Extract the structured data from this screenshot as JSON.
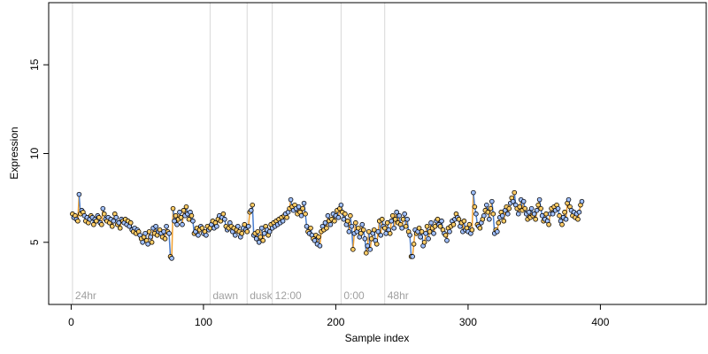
{
  "chart_data": {
    "type": "scatter",
    "title": "",
    "xlabel": "Sample index",
    "ylabel": "Expression",
    "xlim": [
      -17,
      480
    ],
    "ylim": [
      1.5,
      18.5
    ],
    "x_ticks": [
      0,
      100,
      200,
      300,
      400
    ],
    "y_ticks": [
      5,
      10,
      15
    ],
    "grid": false,
    "legend": "none",
    "colors": {
      "point_fill_a": "#ffcc66",
      "point_fill_b": "#a0c0ff",
      "point_stroke": "#000000",
      "connector_a": "#f0a030",
      "connector_b": "#4a7fd0",
      "phase_line": "#d8d8d8",
      "phase_label": "#a0a0a0"
    },
    "phase_markers": [
      {
        "label": "24hr",
        "x": 1
      },
      {
        "label": "dawn",
        "x": 105
      },
      {
        "label": "dusk",
        "x": 133
      },
      {
        "label": "12:00",
        "x": 152
      },
      {
        "label": "0:00",
        "x": 204
      },
      {
        "label": "48hr",
        "x": 237
      }
    ],
    "series": [
      {
        "x_start": 1,
        "values": [
          6.6,
          6.4,
          6.5,
          6.3,
          6.2,
          7.7,
          6.6,
          6.8,
          6.7,
          6.5,
          6.2,
          6.4,
          6.1,
          6.3,
          6.5,
          6.4,
          6.0,
          6.3,
          6.2,
          6.5,
          6.4,
          6.1,
          6.0,
          6.9,
          6.6,
          6.3,
          6.2,
          6.4,
          6.1,
          6.3,
          5.9,
          6.2,
          6.6,
          6.4,
          6.0,
          6.1,
          5.8,
          6.3,
          6.2,
          6.1,
          6.3,
          6.0,
          6.2,
          5.9,
          6.1,
          5.7,
          5.6,
          5.8,
          5.5,
          5.7,
          5.6,
          5.4,
          5.2,
          5.0,
          5.3,
          5.5,
          5.1,
          4.9,
          5.6,
          5.3,
          5.0,
          5.8,
          5.5,
          5.9,
          5.4,
          5.6,
          5.7,
          5.5,
          5.3,
          5.6,
          5.2,
          5.9,
          5.6,
          5.5,
          4.2,
          4.1,
          6.9,
          6.2,
          6.5,
          6.0,
          6.3,
          6.7,
          6.4,
          6.0,
          6.8,
          6.5,
          7.0,
          6.6,
          6.3,
          6.7,
          6.5,
          6.2,
          5.5,
          5.6,
          5.8,
          5.4,
          5.7,
          5.9,
          5.8,
          5.5,
          5.6,
          5.4,
          5.9,
          5.7,
          5.8,
          6.0,
          6.2,
          5.8,
          6.1,
          5.9,
          6.3,
          6.5,
          6.2,
          6.4,
          6.6,
          6.3,
          5.9,
          5.7,
          5.8,
          6.1,
          5.9,
          5.6,
          5.8,
          5.4,
          5.7,
          5.9,
          5.6,
          5.3,
          5.5,
          5.8,
          6.0,
          5.7,
          5.6,
          5.9,
          6.7,
          6.8,
          7.1,
          5.4,
          5.5,
          5.2,
          5.6,
          5.0,
          5.3,
          5.8,
          5.1,
          5.5,
          5.9,
          5.7,
          5.4,
          5.6,
          6.0,
          5.8,
          6.1,
          5.9,
          6.2,
          6.0,
          6.3,
          6.1,
          6.4,
          6.2,
          6.5,
          6.6,
          6.4,
          6.7,
          6.9,
          7.4,
          7.0,
          6.8,
          7.1,
          6.9,
          6.6,
          7.0,
          6.7,
          6.5,
          6.9,
          7.2,
          6.6,
          5.9,
          5.6,
          5.5,
          5.8,
          5.4,
          5.2,
          5.1,
          5.4,
          4.9,
          5.3,
          4.8,
          5.6,
          5.9,
          5.7,
          6.1,
          5.8,
          6.5,
          6.2,
          6.0,
          6.3,
          6.6,
          6.2,
          6.5,
          6.8,
          6.4,
          6.9,
          7.1,
          6.7,
          6.3,
          6.6,
          6.0,
          6.2,
          5.6,
          6.5,
          5.9,
          4.6,
          5.5,
          6.1,
          5.6,
          5.8,
          5.3,
          5.5,
          6.0,
          5.7,
          5.2,
          4.4,
          4.8,
          5.6,
          4.6,
          5.2,
          5.5,
          5.7,
          5.1,
          4.9,
          5.6,
          6.2,
          5.4,
          6.3,
          5.9,
          5.8,
          5.5,
          6.1,
          5.7,
          5.5,
          6.2,
          6.5,
          5.8,
          6.3,
          6.7,
          6.1,
          6.5,
          6.0,
          5.8,
          6.3,
          6.6,
          5.9,
          6.3,
          5.6,
          5.4,
          4.2,
          4.2,
          4.9,
          5.7,
          5.5,
          5.6,
          5.8,
          5.3,
          5.6,
          4.8,
          5.0,
          5.5,
          5.9,
          5.2,
          5.6,
          6.1,
          5.8,
          5.5,
          5.9,
          6.2,
          6.3,
          6.0,
          5.9,
          6.2,
          5.7,
          5.5,
          5.4,
          5.1,
          5.8,
          5.6,
          5.9,
          6.2,
          6.0,
          6.3,
          6.6,
          6.4,
          6.3,
          5.9,
          6.1,
          5.6,
          6.2,
          5.7,
          5.8,
          5.6,
          6.0,
          5.5,
          5.7,
          7.8,
          7.0,
          6.6,
          6.0,
          5.9,
          5.8,
          6.1,
          6.3,
          6.5,
          6.8,
          7.1,
          6.7,
          6.3,
          6.9,
          7.3,
          6.6,
          5.5,
          5.7,
          5.6,
          6.1,
          6.4,
          6.7,
          6.5,
          6.2,
          6.8,
          7.0,
          6.6,
          6.9,
          7.2,
          7.5,
          7.3,
          7.8,
          7.1,
          6.9,
          6.6,
          7.0,
          7.4,
          6.8,
          7.3,
          6.9,
          6.6,
          6.3,
          6.7,
          6.4,
          6.9,
          6.5,
          6.6,
          6.3,
          6.8,
          7.1,
          7.4,
          6.9,
          6.5,
          6.2,
          6.3,
          6.6,
          6.2,
          6.0,
          6.6,
          6.9,
          6.6,
          7.0,
          6.8,
          7.1,
          6.9,
          6.5,
          6.2,
          6.0,
          6.4,
          6.7,
          6.3,
          7.2,
          7.4,
          7.0,
          6.8,
          6.5,
          6.7,
          6.4,
          6.6,
          6.3,
          6.7,
          7.1,
          7.3
        ]
      }
    ]
  }
}
